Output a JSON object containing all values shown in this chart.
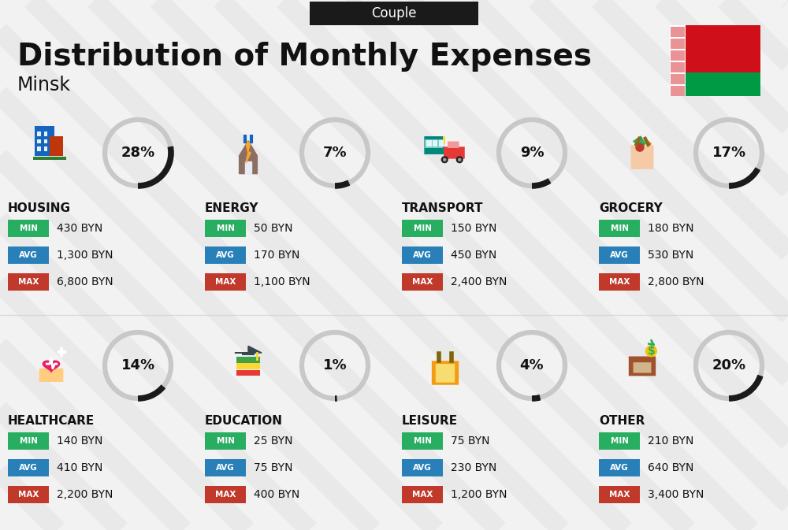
{
  "title": "Distribution of Monthly Expenses",
  "subtitle": "Couple",
  "city": "Minsk",
  "bg_color": "#f2f2f2",
  "categories": [
    {
      "name": "HOUSING",
      "pct": 28,
      "min": "430 BYN",
      "avg": "1,300 BYN",
      "max": "6,800 BYN",
      "row": 0,
      "col": 0
    },
    {
      "name": "ENERGY",
      "pct": 7,
      "min": "50 BYN",
      "avg": "170 BYN",
      "max": "1,100 BYN",
      "row": 0,
      "col": 1
    },
    {
      "name": "TRANSPORT",
      "pct": 9,
      "min": "150 BYN",
      "avg": "450 BYN",
      "max": "2,400 BYN",
      "row": 0,
      "col": 2
    },
    {
      "name": "GROCERY",
      "pct": 17,
      "min": "180 BYN",
      "avg": "530 BYN",
      "max": "2,800 BYN",
      "row": 0,
      "col": 3
    },
    {
      "name": "HEALTHCARE",
      "pct": 14,
      "min": "140 BYN",
      "avg": "410 BYN",
      "max": "2,200 BYN",
      "row": 1,
      "col": 0
    },
    {
      "name": "EDUCATION",
      "pct": 1,
      "min": "25 BYN",
      "avg": "75 BYN",
      "max": "400 BYN",
      "row": 1,
      "col": 1
    },
    {
      "name": "LEISURE",
      "pct": 4,
      "min": "75 BYN",
      "avg": "230 BYN",
      "max": "1,200 BYN",
      "row": 1,
      "col": 2
    },
    {
      "name": "OTHER",
      "pct": 20,
      "min": "210 BYN",
      "avg": "640 BYN",
      "max": "3,400 BYN",
      "row": 1,
      "col": 3
    }
  ],
  "min_color": "#27ae60",
  "avg_color": "#2980b9",
  "max_color": "#c0392b",
  "text_color": "#111111",
  "donut_bg": "#c8c8c8",
  "donut_fg": "#1a1a1a",
  "stripe_color": "#e8e8e8",
  "banner_color": "#1a1a1a",
  "flag_red": "#CF101A",
  "flag_green": "#009A44"
}
